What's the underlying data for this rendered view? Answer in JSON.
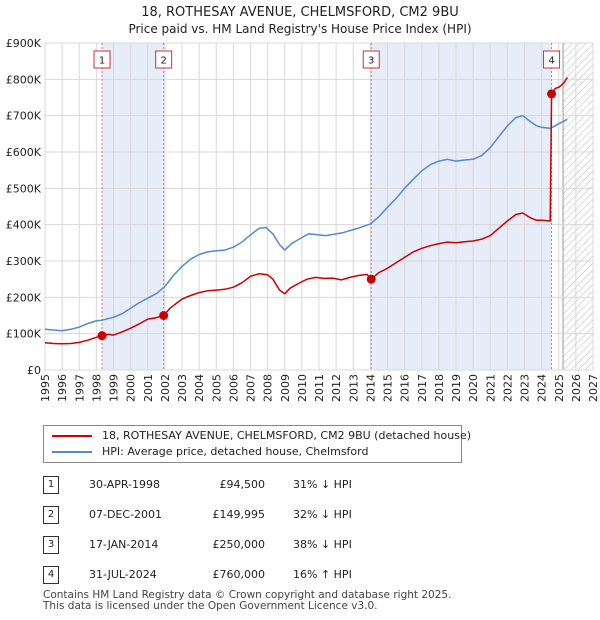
{
  "chart_data": {
    "type": "line",
    "title": "18, ROTHESAY AVENUE, CHELMSFORD, CM2 9BU",
    "subtitle": "Price paid vs. HM Land Registry's House Price Index (HPI)",
    "xlim": [
      1995,
      2027
    ],
    "ylim": [
      0,
      900000
    ],
    "x_ticks": [
      1995,
      1996,
      1997,
      1998,
      1999,
      2000,
      2001,
      2002,
      2003,
      2004,
      2005,
      2006,
      2007,
      2008,
      2009,
      2010,
      2011,
      2012,
      2013,
      2014,
      2015,
      2016,
      2017,
      2018,
      2019,
      2020,
      2021,
      2022,
      2023,
      2024,
      2025,
      2026,
      2027
    ],
    "y_ticks": [
      {
        "value": 0,
        "label": "£0"
      },
      {
        "value": 100000,
        "label": "£100K"
      },
      {
        "value": 200000,
        "label": "£200K"
      },
      {
        "value": 300000,
        "label": "£300K"
      },
      {
        "value": 400000,
        "label": "£400K"
      },
      {
        "value": 500000,
        "label": "£500K"
      },
      {
        "value": 600000,
        "label": "£600K"
      },
      {
        "value": 700000,
        "label": "£700K"
      },
      {
        "value": 800000,
        "label": "£800K"
      },
      {
        "value": 900000,
        "label": "£900K"
      }
    ],
    "future_start": 2025.25,
    "series": [
      {
        "name": "18, ROTHESAY AVENUE, CHELMSFORD, CM2 9BU (detached house)",
        "color": "#cc0000",
        "points": [
          [
            1995.0,
            75000
          ],
          [
            1995.5,
            73000
          ],
          [
            1996.0,
            72000
          ],
          [
            1996.5,
            73000
          ],
          [
            1997.0,
            76000
          ],
          [
            1997.5,
            82000
          ],
          [
            1998.0,
            90000
          ],
          [
            1998.33,
            94500
          ],
          [
            1998.7,
            98000
          ],
          [
            1999.0,
            96000
          ],
          [
            1999.5,
            105000
          ],
          [
            2000.0,
            115000
          ],
          [
            2000.5,
            127000
          ],
          [
            2001.0,
            140000
          ],
          [
            2001.5,
            144000
          ],
          [
            2001.93,
            149995
          ],
          [
            2002.3,
            170000
          ],
          [
            2003.0,
            195000
          ],
          [
            2003.5,
            205000
          ],
          [
            2004.0,
            213000
          ],
          [
            2004.5,
            218000
          ],
          [
            2005.0,
            220000
          ],
          [
            2005.5,
            222000
          ],
          [
            2006.0,
            228000
          ],
          [
            2006.5,
            240000
          ],
          [
            2007.0,
            258000
          ],
          [
            2007.5,
            265000
          ],
          [
            2008.0,
            262000
          ],
          [
            2008.3,
            250000
          ],
          [
            2008.7,
            220000
          ],
          [
            2009.0,
            210000
          ],
          [
            2009.3,
            225000
          ],
          [
            2009.8,
            238000
          ],
          [
            2010.3,
            250000
          ],
          [
            2010.8,
            255000
          ],
          [
            2011.3,
            252000
          ],
          [
            2011.8,
            253000
          ],
          [
            2012.3,
            248000
          ],
          [
            2012.8,
            255000
          ],
          [
            2013.3,
            260000
          ],
          [
            2013.8,
            263000
          ],
          [
            2014.05,
            250000
          ],
          [
            2014.5,
            268000
          ],
          [
            2015.0,
            280000
          ],
          [
            2015.5,
            295000
          ],
          [
            2016.0,
            310000
          ],
          [
            2016.5,
            325000
          ],
          [
            2017.0,
            335000
          ],
          [
            2017.5,
            342000
          ],
          [
            2018.0,
            348000
          ],
          [
            2018.5,
            352000
          ],
          [
            2019.0,
            350000
          ],
          [
            2019.5,
            353000
          ],
          [
            2020.0,
            355000
          ],
          [
            2020.5,
            360000
          ],
          [
            2021.0,
            370000
          ],
          [
            2021.5,
            390000
          ],
          [
            2022.0,
            410000
          ],
          [
            2022.5,
            428000
          ],
          [
            2022.9,
            432000
          ],
          [
            2023.3,
            420000
          ],
          [
            2023.7,
            412000
          ],
          [
            2024.0,
            412000
          ],
          [
            2024.5,
            410000
          ],
          [
            2024.58,
            760000
          ],
          [
            2024.8,
            775000
          ],
          [
            2025.0,
            778000
          ],
          [
            2025.3,
            790000
          ],
          [
            2025.5,
            805000
          ]
        ]
      },
      {
        "name": "HPI: Average price, detached house, Chelmsford",
        "color": "#5588cc",
        "points": [
          [
            1995.0,
            112000
          ],
          [
            1995.5,
            110000
          ],
          [
            1996.0,
            108000
          ],
          [
            1996.5,
            112000
          ],
          [
            1997.0,
            118000
          ],
          [
            1997.5,
            128000
          ],
          [
            1998.0,
            135000
          ],
          [
            1998.33,
            137000
          ],
          [
            1999.0,
            145000
          ],
          [
            1999.5,
            155000
          ],
          [
            2000.0,
            170000
          ],
          [
            2000.5,
            185000
          ],
          [
            2001.0,
            198000
          ],
          [
            2001.5,
            210000
          ],
          [
            2002.0,
            230000
          ],
          [
            2002.5,
            260000
          ],
          [
            2003.0,
            285000
          ],
          [
            2003.5,
            305000
          ],
          [
            2004.0,
            318000
          ],
          [
            2004.5,
            325000
          ],
          [
            2005.0,
            328000
          ],
          [
            2005.5,
            330000
          ],
          [
            2006.0,
            338000
          ],
          [
            2006.5,
            352000
          ],
          [
            2007.0,
            372000
          ],
          [
            2007.5,
            390000
          ],
          [
            2007.9,
            392000
          ],
          [
            2008.3,
            375000
          ],
          [
            2008.7,
            345000
          ],
          [
            2009.0,
            330000
          ],
          [
            2009.4,
            348000
          ],
          [
            2009.9,
            362000
          ],
          [
            2010.4,
            375000
          ],
          [
            2010.9,
            372000
          ],
          [
            2011.4,
            370000
          ],
          [
            2011.9,
            374000
          ],
          [
            2012.4,
            378000
          ],
          [
            2012.9,
            385000
          ],
          [
            2013.4,
            392000
          ],
          [
            2014.0,
            402000
          ],
          [
            2014.5,
            422000
          ],
          [
            2015.0,
            448000
          ],
          [
            2015.5,
            472000
          ],
          [
            2016.0,
            500000
          ],
          [
            2016.5,
            525000
          ],
          [
            2017.0,
            548000
          ],
          [
            2017.5,
            565000
          ],
          [
            2018.0,
            575000
          ],
          [
            2018.5,
            580000
          ],
          [
            2019.0,
            575000
          ],
          [
            2019.5,
            578000
          ],
          [
            2020.0,
            580000
          ],
          [
            2020.5,
            590000
          ],
          [
            2021.0,
            612000
          ],
          [
            2021.5,
            642000
          ],
          [
            2022.0,
            672000
          ],
          [
            2022.5,
            695000
          ],
          [
            2022.9,
            700000
          ],
          [
            2023.3,
            685000
          ],
          [
            2023.7,
            672000
          ],
          [
            2024.0,
            668000
          ],
          [
            2024.5,
            665000
          ],
          [
            2024.8,
            672000
          ],
          [
            2025.0,
            678000
          ],
          [
            2025.3,
            685000
          ],
          [
            2025.5,
            690000
          ]
        ]
      }
    ],
    "sales": [
      {
        "label": "1",
        "x": 1998.33,
        "price": 94500
      },
      {
        "label": "2",
        "x": 2001.93,
        "price": 149995
      },
      {
        "label": "3",
        "x": 2014.05,
        "price": 250000
      },
      {
        "label": "4",
        "x": 2024.58,
        "price": 760000
      }
    ]
  },
  "legend": {
    "property": "18, ROTHESAY AVENUE, CHELMSFORD, CM2 9BU (detached house)",
    "hpi": "HPI: Average price, detached house, Chelmsford"
  },
  "table": {
    "rows": [
      {
        "num": "1",
        "date": "30-APR-1998",
        "price": "£94,500",
        "hpi": "31% ↓ HPI"
      },
      {
        "num": "2",
        "date": "07-DEC-2001",
        "price": "£149,995",
        "hpi": "32% ↓ HPI"
      },
      {
        "num": "3",
        "date": "17-JAN-2014",
        "price": "£250,000",
        "hpi": "38% ↓ HPI"
      },
      {
        "num": "4",
        "date": "31-JUL-2024",
        "price": "£760,000",
        "hpi": "16% ↑ HPI"
      }
    ]
  },
  "footer": {
    "line1": "Contains HM Land Registry data © Crown copyright and database right 2025.",
    "line2": "This data is licensed under the Open Government Licence v3.0."
  }
}
